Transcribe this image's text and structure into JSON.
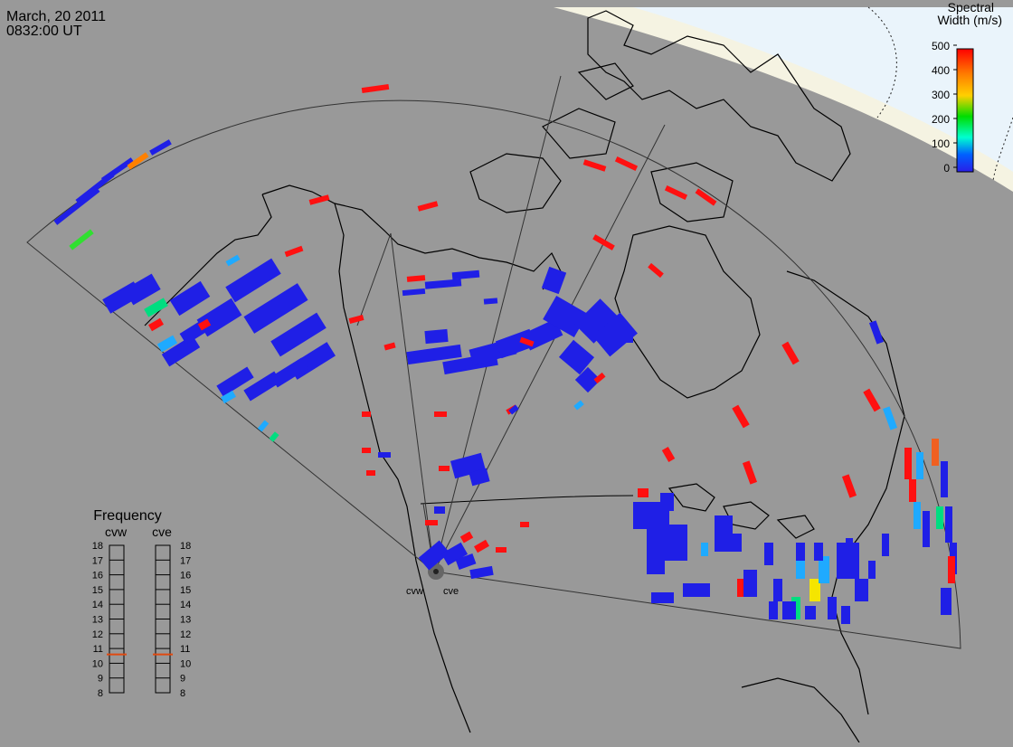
{
  "header": {
    "date": "March, 20 2011",
    "time": "0832:00 UT"
  },
  "colorbar": {
    "title_line1": "Spectral",
    "title_line2": "Width (m/s)",
    "ticks": [
      "500",
      "400",
      "300",
      "200",
      "100",
      "0"
    ],
    "colors": [
      "#ff0000",
      "#ff6a00",
      "#ffd000",
      "#00dd00",
      "#00ffd0",
      "#0060ff",
      "#2020ee"
    ]
  },
  "frequency": {
    "title": "Frequency",
    "radar_west": "cvw",
    "radar_east": "cve",
    "scale": [
      "18",
      "17",
      "16",
      "15",
      "14",
      "13",
      "12",
      "11",
      "10",
      "9",
      "8"
    ],
    "cvw_mhz": 10.6,
    "cve_mhz": 10.6
  },
  "radars": {
    "west_label": "cvw",
    "east_label": "cve"
  },
  "map": {
    "background": "#999999",
    "day_region": "#eef6fb",
    "coast": "#000000",
    "fov": "#333333"
  }
}
